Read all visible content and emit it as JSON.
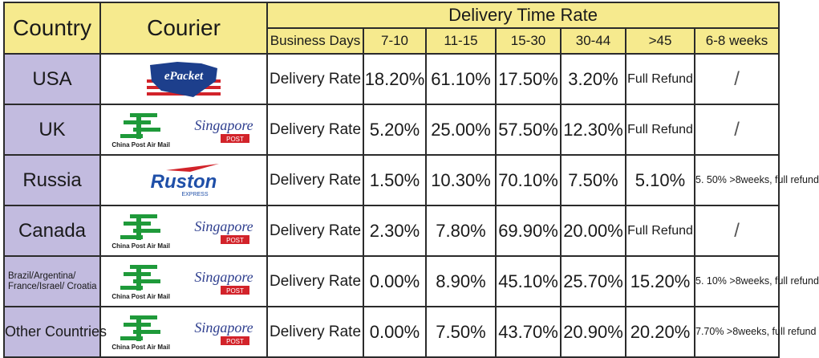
{
  "header": {
    "country": "Country",
    "courier": "Courier",
    "delivery_time_rate": "Delivery Time Rate",
    "columns": [
      "Business Days",
      "7-10",
      "11-15",
      "15-30",
      "30-44",
      ">45",
      "6-8 weeks"
    ]
  },
  "logos": {
    "epacket": "ePacket",
    "china_post": "China Post Air Mail",
    "singapore": "Singapore",
    "singapore_post": "POST",
    "ruston": "Ruston",
    "ruston_express": "EXPRESS"
  },
  "rows": [
    {
      "country": "USA",
      "label": "Delivery Rate",
      "values": [
        "18.20%",
        "61.10%",
        "17.50%",
        "3.20%",
        "Full Refund",
        "/"
      ]
    },
    {
      "country": "UK",
      "label": "Delivery Rate",
      "values": [
        "5.20%",
        "25.00%",
        "57.50%",
        "12.30%",
        "Full Refund",
        "/"
      ]
    },
    {
      "country": "Russia",
      "label": "Delivery Rate",
      "values": [
        "1.50%",
        "10.30%",
        "70.10%",
        "7.50%",
        "5.10%",
        "5. 50% >8weeks, full refund"
      ]
    },
    {
      "country": "Canada",
      "label": "Delivery Rate",
      "values": [
        "2.30%",
        "7.80%",
        "69.90%",
        "20.00%",
        "Full Refund",
        "/"
      ]
    },
    {
      "country": "Brazil/Argentina/ France/Israel/ Croatia",
      "label": "Delivery Rate",
      "values": [
        "0.00%",
        "8.90%",
        "45.10%",
        "25.70%",
        "15.20%",
        "5. 10% >8weeks, full refund"
      ]
    },
    {
      "country": "Other Countries",
      "label": "Delivery Rate",
      "values": [
        "0.00%",
        "7.50%",
        "43.70%",
        "20.90%",
        "20.20%",
        "7.70% >8weeks, full refund"
      ]
    }
  ],
  "colors": {
    "header_bg": "#f6ea8e",
    "country_bg": "#c2bbdf",
    "china_post_green": "#1f9a3a",
    "singapore_red": "#d2232a",
    "singapore_blue": "#2f3f8f",
    "epacket_blue": "#1d3f8c",
    "ruston_blue": "#1f4fa8"
  }
}
